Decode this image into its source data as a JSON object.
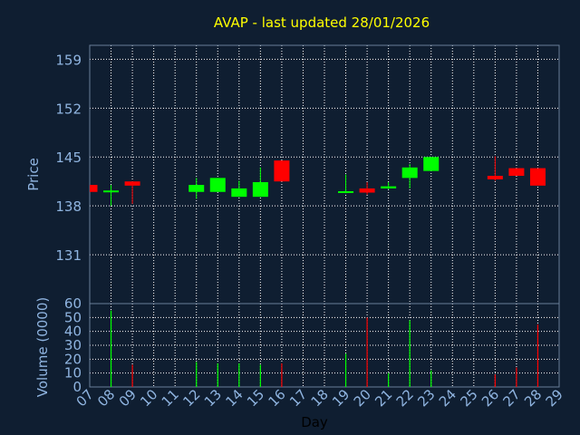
{
  "title": "AVAP - last updated 28/01/2026",
  "colors": {
    "background": "#0f1e31",
    "title": "#ffff00",
    "axis_text": "#8fb4e0",
    "grid": "#ffffff",
    "up": "#00ff00",
    "down": "#ff0000"
  },
  "chart_data": [
    {
      "type": "candlestick",
      "ylabel": "Price",
      "ylim": [
        124,
        161
      ],
      "yticks": [
        131,
        138,
        145,
        152,
        159
      ],
      "x_tick_labels": [
        "07",
        "08",
        "09",
        "10",
        "11",
        "12",
        "13",
        "14",
        "15",
        "16",
        "17",
        "18",
        "19",
        "20",
        "21",
        "22",
        "23",
        "24",
        "25",
        "26",
        "27",
        "28",
        "29"
      ],
      "grid": true,
      "candles": [
        {
          "day": "07",
          "open": 141.0,
          "high": 141.0,
          "low": 140.0,
          "close": 140.0
        },
        {
          "day": "08",
          "open": 140.0,
          "high": 141.0,
          "low": 138.0,
          "close": 140.2
        },
        {
          "day": "09",
          "open": 141.5,
          "high": 141.5,
          "low": 138.3,
          "close": 140.9
        },
        {
          "day": "12",
          "open": 140.0,
          "high": 142.0,
          "low": 139.0,
          "close": 141.0
        },
        {
          "day": "13",
          "open": 140.0,
          "high": 142.0,
          "low": 140.0,
          "close": 142.0
        },
        {
          "day": "14",
          "open": 139.3,
          "high": 141.6,
          "low": 139.3,
          "close": 140.5
        },
        {
          "day": "15",
          "open": 139.3,
          "high": 143.5,
          "low": 139.3,
          "close": 141.4
        },
        {
          "day": "16",
          "open": 144.5,
          "high": 144.5,
          "low": 141.5,
          "close": 141.5
        },
        {
          "day": "19",
          "open": 140.0,
          "high": 142.5,
          "low": 139.8,
          "close": 140.1
        },
        {
          "day": "20",
          "open": 140.5,
          "high": 141.4,
          "low": 139.6,
          "close": 139.9
        },
        {
          "day": "21",
          "open": 140.5,
          "high": 141.4,
          "low": 140.4,
          "close": 140.8
        },
        {
          "day": "22",
          "open": 142.0,
          "high": 144.0,
          "low": 140.5,
          "close": 143.5
        },
        {
          "day": "23",
          "open": 143.0,
          "high": 145.0,
          "low": 143.0,
          "close": 145.0
        },
        {
          "day": "26",
          "open": 142.3,
          "high": 145.1,
          "low": 141.6,
          "close": 141.8
        },
        {
          "day": "27",
          "open": 143.4,
          "high": 143.4,
          "low": 142.3,
          "close": 142.3
        },
        {
          "day": "28",
          "open": 143.4,
          "high": 143.4,
          "low": 140.9,
          "close": 140.9
        }
      ]
    },
    {
      "type": "bar",
      "ylabel": "Volume (0000)",
      "xlabel": "Day",
      "ylim": [
        0,
        60
      ],
      "yticks": [
        0,
        10,
        20,
        30,
        40,
        50,
        60
      ],
      "x_tick_labels": [
        "07",
        "08",
        "09",
        "10",
        "11",
        "12",
        "13",
        "14",
        "15",
        "16",
        "17",
        "18",
        "19",
        "20",
        "21",
        "22",
        "23",
        "24",
        "25",
        "26",
        "27",
        "28",
        "29"
      ],
      "grid": true,
      "bars": [
        {
          "day": "07",
          "value": 0,
          "direction": "down"
        },
        {
          "day": "08",
          "value": 55,
          "direction": "up"
        },
        {
          "day": "09",
          "value": 16,
          "direction": "down"
        },
        {
          "day": "12",
          "value": 18,
          "direction": "up"
        },
        {
          "day": "13",
          "value": 17,
          "direction": "up"
        },
        {
          "day": "14",
          "value": 17,
          "direction": "up"
        },
        {
          "day": "15",
          "value": 16,
          "direction": "up"
        },
        {
          "day": "16",
          "value": 17,
          "direction": "down"
        },
        {
          "day": "19",
          "value": 24,
          "direction": "up"
        },
        {
          "day": "20",
          "value": 50,
          "direction": "down"
        },
        {
          "day": "21",
          "value": 10,
          "direction": "up"
        },
        {
          "day": "22",
          "value": 48,
          "direction": "up"
        },
        {
          "day": "23",
          "value": 12,
          "direction": "up"
        },
        {
          "day": "26",
          "value": 9,
          "direction": "down"
        },
        {
          "day": "27",
          "value": 14,
          "direction": "down"
        },
        {
          "day": "28",
          "value": 45,
          "direction": "down"
        }
      ]
    }
  ]
}
